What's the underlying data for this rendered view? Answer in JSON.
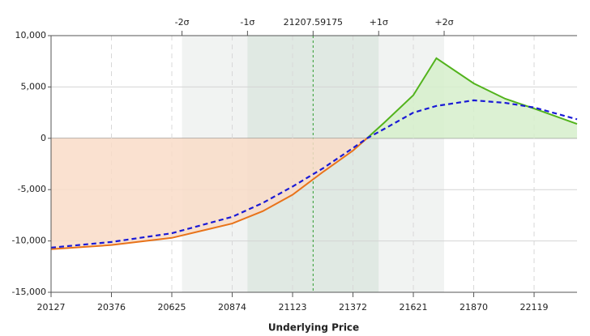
{
  "chart_data": {
    "type": "line",
    "xlabel": "Underlying Price",
    "x": [
      20127,
      20376,
      20625,
      20874,
      21000,
      21123,
      21250,
      21372,
      21430,
      21500,
      21621,
      21716,
      21870,
      22000,
      22119,
      22296
    ],
    "series": [
      {
        "color": "#e8731a",
        "positive_color": "#52b31c",
        "fill": "#f9dcc8",
        "positive_fill": "#d6efcb",
        "dash": false,
        "values": [
          -10800,
          -10400,
          -9700,
          -8300,
          -7100,
          -5500,
          -3250,
          -1200,
          0,
          1500,
          4200,
          7800,
          5350,
          3850,
          2900,
          1400
        ]
      },
      {
        "color": "#1a1ad6",
        "dash": true,
        "values": [
          -10650,
          -10100,
          -9250,
          -7650,
          -6300,
          -4700,
          -2900,
          -950,
          0,
          900,
          2500,
          3150,
          3700,
          3450,
          3000,
          1850
        ]
      }
    ],
    "xlim": [
      20127,
      22296
    ],
    "xticks": [
      20127,
      20376,
      20625,
      20874,
      21123,
      21372,
      21621,
      21870,
      22119
    ],
    "ylim": [
      -15000,
      10000
    ],
    "yticks": [
      {
        "value": -15000,
        "label": "-15,000"
      },
      {
        "value": -10000,
        "label": "-10,000"
      },
      {
        "value": -5000,
        "label": "-5,000"
      },
      0,
      {
        "value": 5000,
        "label": "5,000"
      },
      {
        "value": 10000,
        "label": "10,000"
      }
    ],
    "sigma_ticks": [
      {
        "value": 20667,
        "label": "-2σ"
      },
      {
        "value": 20937,
        "label": "-1σ"
      },
      {
        "value": 21207.59175,
        "label": "21207.59175"
      },
      {
        "value": 21478,
        "label": "+1σ"
      },
      {
        "value": 21748,
        "label": "+2σ"
      }
    ],
    "sigma_colors": [
      "#f1f3f2",
      "#e0e9e3"
    ],
    "center_color": "#2e9a2e",
    "grid": true
  }
}
